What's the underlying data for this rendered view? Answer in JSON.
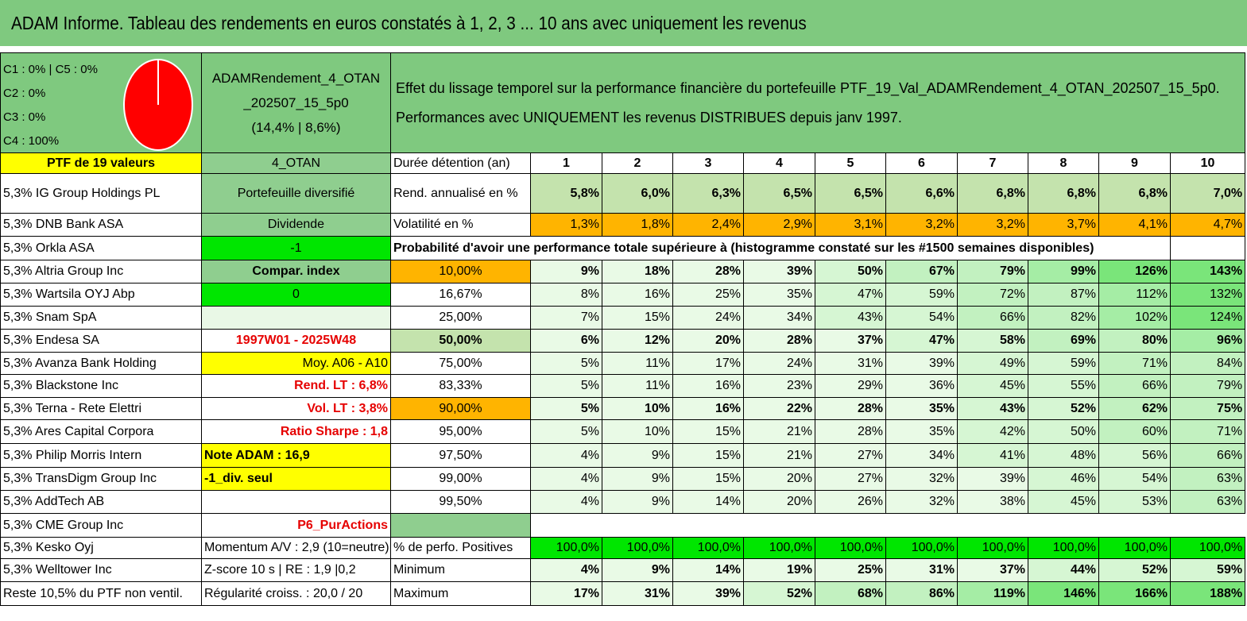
{
  "title": "ADAM Informe. Tableau des rendements en euros constatés à 1, 2, 3 ... 10 ans avec uniquement les revenus",
  "allocation": [
    "C1 : 0% | C5 : 0%",
    "C2 : 0%",
    "C3 : 0%",
    "C4 : 100%"
  ],
  "pie": {
    "color": "#ff0000",
    "value_c4": 100
  },
  "portfolio_label": [
    "ADAMRendement_4_OTAN",
    "_202507_15_5p0",
    "(14,4% | 8,6%)"
  ],
  "description": [
    "Effet du lissage temporel sur la performance financière du portefeuille PTF_19_Val_ADAMRendement_4_OTAN_202507_15_5p0.",
    "Performances avec UNIQUEMENT les revenus DISTRIBUES depuis janv 1997."
  ],
  "ptf_header": "PTF de 19 valeurs",
  "code": "4_OTAN",
  "duration_label": "Durée détention (an)",
  "years": [
    "1",
    "2",
    "3",
    "4",
    "5",
    "6",
    "7",
    "8",
    "9",
    "10"
  ],
  "assets": [
    "5,3% IG Group Holdings PL",
    "5,3% DNB Bank ASA",
    "5,3% Orkla ASA",
    "5,3% Altria Group Inc",
    "5,3% Wartsila OYJ Abp",
    "5,3% Snam SpA",
    "5,3% Endesa SA",
    "5,3% Avanza Bank Holding",
    "5,3% Blackstone Inc",
    "5,3% Terna - Rete Elettri",
    "5,3% Ares Capital Corpora",
    "5,3% Philip Morris Intern",
    "5,3% TransDigm Group Inc",
    "5,3% AddTech AB",
    "5,3% CME Group Inc",
    "5,3% Kesko Oyj",
    "5,3% Welltower Inc",
    "Reste 10,5% du PTF non ventil."
  ],
  "info": {
    "type": "Portefeuille diversifié",
    "dividend": "Dividende",
    "flag": "-1",
    "compar": "Compar. index",
    "compar_value": "0",
    "period": "1997W01 - 2025W48",
    "moy": "Moy. A06 - A10",
    "rend_lt": "Rend. LT : 6,8%",
    "vol_lt": "Vol. LT : 3,8%",
    "sharpe": "Ratio Sharpe : 1,8",
    "note": "Note ADAM : 16,9",
    "div_seul": "-1_div. seul",
    "strategy": "P6_PurActions",
    "momentum": "Momentum A/V : 2,9 (10=neutre)",
    "zscore": "Z-score 10 s | RE : 1,9 |0,2",
    "regularity": "Régularité croiss. : 20,0 / 20"
  },
  "rend_label": "Rend. annualisé en %",
  "rend": [
    "5,8%",
    "6,0%",
    "6,3%",
    "6,5%",
    "6,5%",
    "6,6%",
    "6,8%",
    "6,8%",
    "6,8%",
    "7,0%"
  ],
  "vol_label": "Volatilité en %",
  "vol": [
    "1,3%",
    "1,8%",
    "2,4%",
    "2,9%",
    "3,1%",
    "3,2%",
    "3,2%",
    "3,7%",
    "4,1%",
    "4,7%"
  ],
  "prob_title": "Probabilité d'avoir une performance totale supérieure à (histogramme constaté sur les #1500 semaines disponibles)",
  "probabilities": [
    {
      "p": "10,00%",
      "v": [
        "9%",
        "18%",
        "28%",
        "39%",
        "50%",
        "67%",
        "79%",
        "99%",
        "126%",
        "143%"
      ]
    },
    {
      "p": "16,67%",
      "v": [
        "8%",
        "16%",
        "25%",
        "35%",
        "47%",
        "59%",
        "72%",
        "87%",
        "112%",
        "132%"
      ]
    },
    {
      "p": "25,00%",
      "v": [
        "7%",
        "15%",
        "24%",
        "34%",
        "43%",
        "54%",
        "66%",
        "82%",
        "102%",
        "124%"
      ]
    },
    {
      "p": "50,00%",
      "v": [
        "6%",
        "12%",
        "20%",
        "28%",
        "37%",
        "47%",
        "58%",
        "69%",
        "80%",
        "96%"
      ]
    },
    {
      "p": "75,00%",
      "v": [
        "5%",
        "11%",
        "17%",
        "24%",
        "31%",
        "39%",
        "49%",
        "59%",
        "71%",
        "84%"
      ]
    },
    {
      "p": "83,33%",
      "v": [
        "5%",
        "11%",
        "16%",
        "23%",
        "29%",
        "36%",
        "45%",
        "55%",
        "66%",
        "79%"
      ]
    },
    {
      "p": "90,00%",
      "v": [
        "5%",
        "10%",
        "16%",
        "22%",
        "28%",
        "35%",
        "43%",
        "52%",
        "62%",
        "75%"
      ]
    },
    {
      "p": "95,00%",
      "v": [
        "5%",
        "10%",
        "15%",
        "21%",
        "28%",
        "35%",
        "42%",
        "50%",
        "60%",
        "71%"
      ]
    },
    {
      "p": "97,50%",
      "v": [
        "4%",
        "9%",
        "15%",
        "21%",
        "27%",
        "34%",
        "41%",
        "48%",
        "56%",
        "66%"
      ]
    },
    {
      "p": "99,00%",
      "v": [
        "4%",
        "9%",
        "15%",
        "20%",
        "27%",
        "32%",
        "39%",
        "46%",
        "54%",
        "63%"
      ]
    },
    {
      "p": "99,50%",
      "v": [
        "4%",
        "9%",
        "14%",
        "20%",
        "26%",
        "32%",
        "38%",
        "45%",
        "53%",
        "63%"
      ]
    }
  ],
  "pos_label": "% de perfo. Positives",
  "pos": [
    "100,0%",
    "100,0%",
    "100,0%",
    "100,0%",
    "100,0%",
    "100,0%",
    "100,0%",
    "100,0%",
    "100,0%",
    "100,0%"
  ],
  "min_label": "Minimum",
  "min": [
    "4%",
    "9%",
    "14%",
    "19%",
    "25%",
    "31%",
    "37%",
    "44%",
    "52%",
    "59%"
  ],
  "max_label": "Maximum",
  "max": [
    "17%",
    "31%",
    "39%",
    "52%",
    "68%",
    "86%",
    "119%",
    "146%",
    "166%",
    "188%"
  ]
}
